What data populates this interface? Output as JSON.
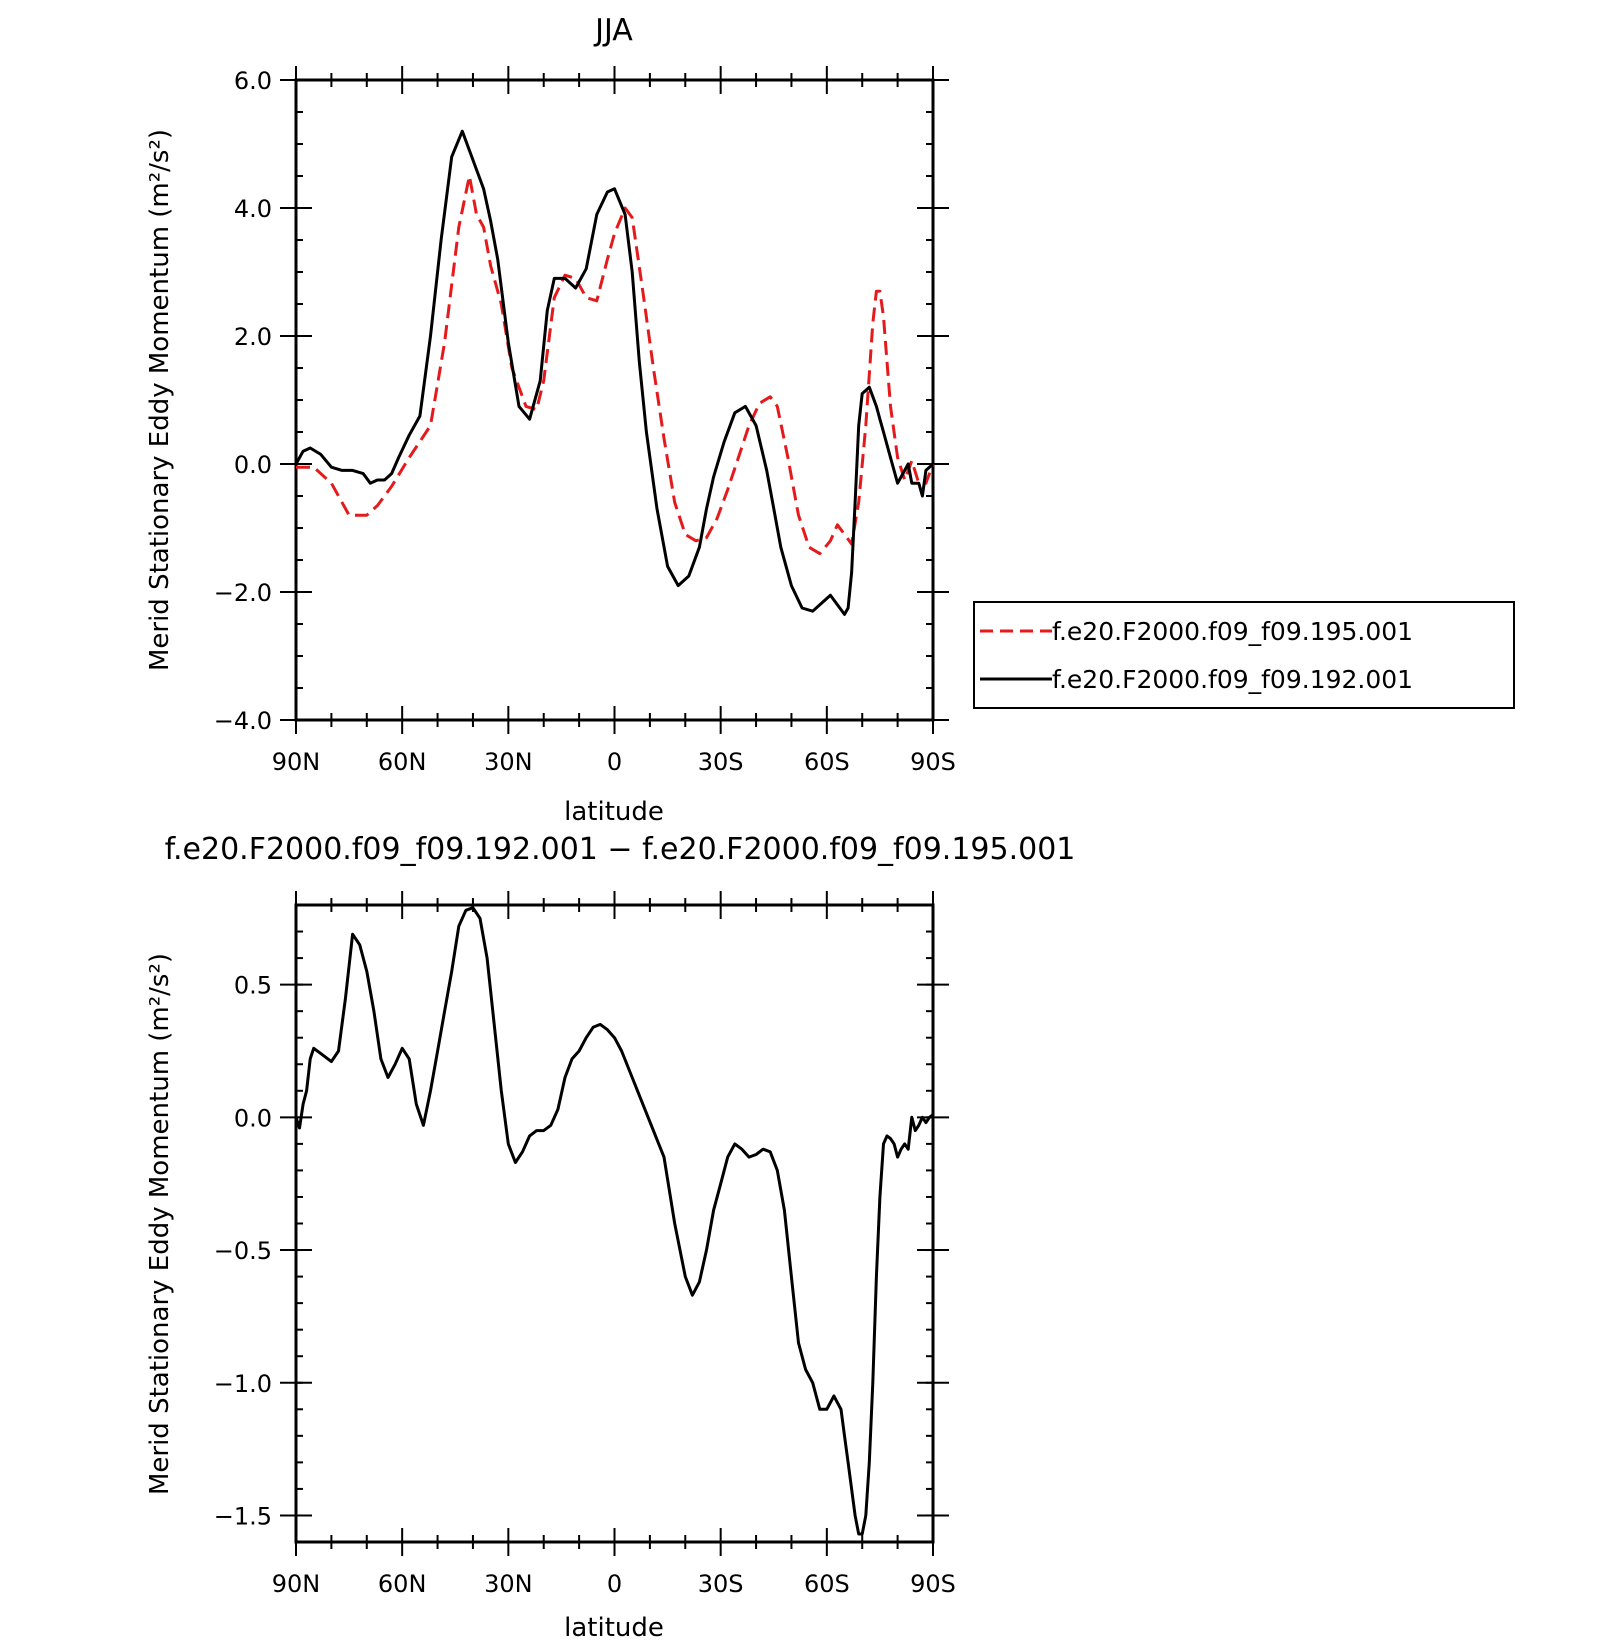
{
  "chart_data": [
    {
      "type": "line",
      "title": "JJA",
      "xlabel": "latitude",
      "ylabel": "Merid Stationary Eddy Momentum (m²/s²)",
      "x_ticks": [
        {
          "value": 90,
          "label": "90N"
        },
        {
          "value": 60,
          "label": "60N"
        },
        {
          "value": 30,
          "label": "30N"
        },
        {
          "value": 0,
          "label": "0"
        },
        {
          "value": -30,
          "label": "30S"
        },
        {
          "value": -60,
          "label": "60S"
        },
        {
          "value": -90,
          "label": "90S"
        }
      ],
      "y_ticks": [
        {
          "value": 6,
          "label": "6.0"
        },
        {
          "value": 4,
          "label": "4.0"
        },
        {
          "value": 2,
          "label": "2.0"
        },
        {
          "value": 0,
          "label": "0.0"
        },
        {
          "value": -2,
          "label": "−2.0"
        },
        {
          "value": -4,
          "label": "−4.0"
        }
      ],
      "xlim": [
        90,
        -90
      ],
      "ylim": [
        -4,
        6
      ],
      "grid": false,
      "legend_position": "right",
      "series": [
        {
          "name": "f.e20.F2000.f09_f09.195.001",
          "color": "#e41a1c",
          "dash": "dashed",
          "x": [
            90,
            85,
            80,
            75,
            70,
            67,
            63,
            58,
            52,
            48,
            44,
            41,
            39,
            37,
            35,
            32,
            29,
            25,
            22,
            20,
            17,
            14,
            11,
            8,
            5,
            2,
            0,
            -3,
            -5,
            -8,
            -11,
            -14,
            -17,
            -20,
            -23,
            -26,
            -29,
            -32,
            -35,
            -38,
            -41,
            -44,
            -46,
            -49,
            -52,
            -55,
            -58,
            -61,
            -63,
            -65,
            -67,
            -69,
            -71,
            -73,
            -74,
            -75,
            -76,
            -77,
            -78,
            -80,
            -82,
            -84,
            -86,
            -88,
            -90
          ],
          "y": [
            -0.05,
            -0.05,
            -0.3,
            -0.8,
            -0.8,
            -0.65,
            -0.35,
            0.1,
            0.6,
            1.9,
            3.7,
            4.5,
            3.9,
            3.7,
            3.1,
            2.5,
            1.5,
            0.9,
            0.85,
            1.3,
            2.6,
            2.95,
            2.9,
            2.6,
            2.55,
            3.2,
            3.6,
            4,
            3.85,
            2.7,
            1.5,
            0.4,
            -0.6,
            -1.1,
            -1.2,
            -1.15,
            -0.85,
            -0.4,
            0.1,
            0.6,
            0.95,
            1.05,
            0.9,
            0.1,
            -0.8,
            -1.3,
            -1.4,
            -1.2,
            -0.95,
            -1.1,
            -1.25,
            -0.6,
            0.6,
            2.2,
            2.7,
            2.7,
            2.3,
            1.6,
            0.9,
            0.1,
            -0.25,
            0.05,
            -0.3,
            -0.3,
            0
          ]
        },
        {
          "name": "f.e20.F2000.f09_f09.192.001",
          "color": "#000000",
          "dash": "solid",
          "x": [
            90,
            88,
            86,
            83,
            80,
            77,
            74,
            71,
            69,
            67,
            65,
            63,
            61,
            58,
            55,
            52,
            49,
            46,
            43,
            41,
            39,
            37,
            35,
            33,
            30,
            27,
            24,
            21,
            19,
            17,
            14,
            11,
            8,
            5,
            2,
            0,
            -3,
            -5,
            -7,
            -9,
            -12,
            -15,
            -18,
            -21,
            -24,
            -26,
            -28,
            -31,
            -34,
            -37,
            -40,
            -43,
            -45,
            -47,
            -50,
            -53,
            -56,
            -59,
            -61,
            -63,
            -65,
            -66,
            -67,
            -68,
            -69,
            -70,
            -72,
            -74,
            -75,
            -76,
            -78,
            -80,
            -82,
            -83,
            -84,
            -86,
            -87,
            -88,
            -90
          ],
          "y": [
            0,
            0.2,
            0.25,
            0.15,
            -0.05,
            -0.1,
            -0.1,
            -0.15,
            -0.3,
            -0.25,
            -0.25,
            -0.15,
            0.1,
            0.45,
            0.75,
            2,
            3.5,
            4.8,
            5.2,
            4.9,
            4.6,
            4.3,
            3.8,
            3.2,
            1.9,
            0.9,
            0.7,
            1.3,
            2.4,
            2.9,
            2.9,
            2.75,
            3.05,
            3.9,
            4.25,
            4.3,
            3.9,
            3,
            1.6,
            0.5,
            -0.7,
            -1.6,
            -1.9,
            -1.75,
            -1.3,
            -0.7,
            -0.2,
            0.35,
            0.8,
            0.9,
            0.6,
            -0.1,
            -0.7,
            -1.3,
            -1.9,
            -2.25,
            -2.3,
            -2.15,
            -2.05,
            -2.2,
            -2.35,
            -2.25,
            -1.7,
            -0.6,
            0.6,
            1.1,
            1.2,
            0.9,
            0.7,
            0.5,
            0.1,
            -0.3,
            -0.1,
            0,
            -0.3,
            -0.3,
            -0.5,
            -0.1,
            0
          ]
        }
      ]
    },
    {
      "type": "line",
      "title": "f.e20.F2000.f09_f09.192.001 − f.e20.F2000.f09_f09.195.001",
      "xlabel": "latitude",
      "ylabel": "Merid Stationary Eddy Momentum (m²/s²)",
      "x_ticks": [
        {
          "value": 90,
          "label": "90N"
        },
        {
          "value": 60,
          "label": "60N"
        },
        {
          "value": 30,
          "label": "30N"
        },
        {
          "value": 0,
          "label": "0"
        },
        {
          "value": -30,
          "label": "30S"
        },
        {
          "value": -60,
          "label": "60S"
        },
        {
          "value": -90,
          "label": "90S"
        }
      ],
      "y_ticks": [
        {
          "value": 0.5,
          "label": "0.5"
        },
        {
          "value": 0,
          "label": "0.0"
        },
        {
          "value": -0.5,
          "label": "−0.5"
        },
        {
          "value": -1,
          "label": "−1.0"
        },
        {
          "value": -1.5,
          "label": "−1.5"
        }
      ],
      "xlim": [
        90,
        -90
      ],
      "ylim": [
        -1.6,
        0.8
      ],
      "grid": false,
      "series": [
        {
          "color": "#000000",
          "dash": "solid",
          "x": [
            90,
            89,
            88,
            87,
            86,
            85,
            83,
            80,
            78,
            76,
            74,
            72,
            70,
            68,
            66,
            64,
            62,
            60,
            58,
            56,
            54,
            52,
            50,
            48,
            46,
            44,
            42,
            40,
            38,
            36,
            34,
            32,
            30,
            28,
            26,
            24,
            22,
            20,
            18,
            16,
            14,
            12,
            10,
            8,
            6,
            4,
            2,
            0,
            -2,
            -5,
            -8,
            -11,
            -14,
            -17,
            -20,
            -22,
            -24,
            -26,
            -28,
            -30,
            -32,
            -34,
            -36,
            -38,
            -40,
            -42,
            -44,
            -46,
            -48,
            -50,
            -52,
            -54,
            -56,
            -58,
            -60,
            -62,
            -64,
            -65,
            -66,
            -67,
            -68,
            -69,
            -70,
            -71,
            -72,
            -73,
            -74,
            -75,
            -76,
            -77,
            -78,
            -79,
            -80,
            -81,
            -82,
            -83,
            -84,
            -85,
            -86,
            -87,
            -88,
            -89,
            -90
          ],
          "y": [
            0,
            -0.04,
            0.05,
            0.1,
            0.22,
            0.26,
            0.24,
            0.21,
            0.25,
            0.45,
            0.69,
            0.65,
            0.55,
            0.4,
            0.22,
            0.15,
            0.2,
            0.26,
            0.22,
            0.05,
            -0.03,
            0.1,
            0.25,
            0.4,
            0.55,
            0.72,
            0.78,
            0.79,
            0.75,
            0.6,
            0.35,
            0.1,
            -0.1,
            -0.17,
            -0.13,
            -0.07,
            -0.05,
            -0.05,
            -0.03,
            0.03,
            0.15,
            0.22,
            0.25,
            0.3,
            0.34,
            0.35,
            0.33,
            0.3,
            0.25,
            0.15,
            0.05,
            -0.05,
            -0.15,
            -0.4,
            -0.6,
            -0.67,
            -0.62,
            -0.5,
            -0.35,
            -0.25,
            -0.15,
            -0.1,
            -0.12,
            -0.15,
            -0.14,
            -0.12,
            -0.13,
            -0.2,
            -0.35,
            -0.6,
            -0.85,
            -0.95,
            -1,
            -1.1,
            -1.1,
            -1.05,
            -1.1,
            -1.2,
            -1.3,
            -1.4,
            -1.5,
            -1.57,
            -1.57,
            -1.5,
            -1.3,
            -1,
            -0.6,
            -0.3,
            -0.1,
            -0.07,
            -0.08,
            -0.1,
            -0.15,
            -0.12,
            -0.1,
            -0.12,
            0,
            -0.05,
            -0.03,
            0,
            -0.02,
            0,
            0.01
          ]
        }
      ]
    }
  ]
}
